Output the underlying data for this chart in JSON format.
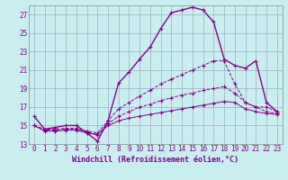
{
  "xlabel": "Windchill (Refroidissement éolien,°C)",
  "ylabel": "",
  "bg_color": "#c8eef0",
  "line_color": "#880088",
  "grid_color": "#9999bb",
  "xlim": [
    -0.5,
    23.5
  ],
  "ylim": [
    13,
    28
  ],
  "xticks": [
    0,
    1,
    2,
    3,
    4,
    5,
    6,
    7,
    8,
    9,
    10,
    11,
    12,
    13,
    14,
    15,
    16,
    17,
    18,
    19,
    20,
    21,
    22,
    23
  ],
  "yticks": [
    13,
    15,
    17,
    19,
    21,
    23,
    25,
    27
  ],
  "curve1_x": [
    0,
    1,
    2,
    3,
    4,
    5,
    6,
    7,
    8,
    9,
    10,
    11,
    12,
    13,
    14,
    15,
    16,
    17,
    18,
    19,
    20,
    21,
    22,
    23
  ],
  "curve1_y": [
    16.0,
    14.6,
    14.8,
    15.0,
    15.0,
    14.2,
    13.3,
    15.5,
    19.6,
    20.8,
    22.2,
    23.5,
    25.5,
    27.2,
    27.5,
    27.8,
    27.5,
    26.2,
    22.2,
    21.5,
    21.2,
    22.0,
    17.5,
    16.5
  ],
  "curve2_x": [
    0,
    1,
    2,
    3,
    4,
    5,
    6,
    7,
    8,
    9,
    10,
    11,
    12,
    13,
    14,
    15,
    16,
    17,
    18,
    19,
    20,
    21,
    22,
    23
  ],
  "curve2_y": [
    15.0,
    14.6,
    14.6,
    14.7,
    14.7,
    14.4,
    14.2,
    15.5,
    16.8,
    17.5,
    18.2,
    18.8,
    19.5,
    20.0,
    20.5,
    21.0,
    21.5,
    22.0,
    22.0,
    19.5,
    17.5,
    17.0,
    16.5,
    16.3
  ],
  "curve3_x": [
    0,
    1,
    2,
    3,
    4,
    5,
    6,
    7,
    8,
    9,
    10,
    11,
    12,
    13,
    14,
    15,
    16,
    17,
    18,
    19,
    20,
    21,
    22,
    23
  ],
  "curve3_y": [
    15.0,
    14.5,
    14.5,
    14.6,
    14.6,
    14.3,
    14.0,
    15.2,
    16.0,
    16.5,
    17.0,
    17.3,
    17.7,
    18.0,
    18.3,
    18.5,
    18.8,
    19.0,
    19.2,
    18.5,
    17.5,
    17.0,
    17.0,
    16.5
  ],
  "curve4_x": [
    0,
    1,
    2,
    3,
    4,
    5,
    6,
    7,
    8,
    9,
    10,
    11,
    12,
    13,
    14,
    15,
    16,
    17,
    18,
    19,
    20,
    21,
    22,
    23
  ],
  "curve4_y": [
    15.0,
    14.4,
    14.4,
    14.5,
    14.5,
    14.2,
    14.0,
    15.0,
    15.5,
    15.8,
    16.0,
    16.2,
    16.4,
    16.6,
    16.8,
    17.0,
    17.2,
    17.4,
    17.6,
    17.5,
    16.8,
    16.5,
    16.3,
    16.2
  ],
  "xlabel_fontsize": 6.0,
  "tick_fontsize": 5.5,
  "dpi": 100
}
